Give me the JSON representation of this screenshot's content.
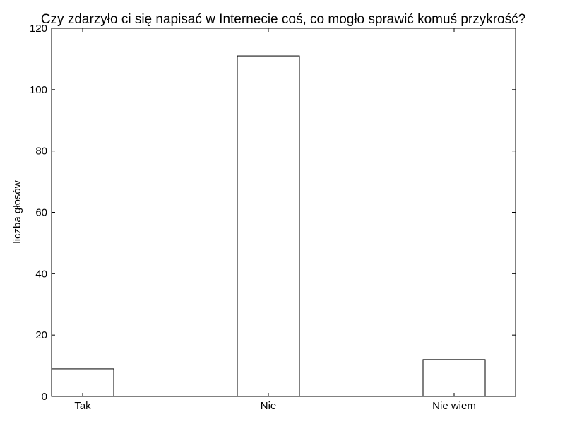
{
  "chart_data": {
    "type": "bar",
    "title": "Czy zdarzyło ci się napisać w Internecie coś, co mogło sprawić komuś przykrość?",
    "xlabel": "",
    "ylabel": "liczba głosów",
    "categories": [
      "Tak",
      "Nie",
      "Nie wiem"
    ],
    "values": [
      9,
      111,
      12
    ],
    "ylim": [
      0,
      120
    ],
    "yticks": [
      0,
      20,
      40,
      60,
      80,
      100,
      120
    ],
    "grid": false,
    "bar_fill": "#ffffff",
    "bar_edge": "#000000"
  }
}
